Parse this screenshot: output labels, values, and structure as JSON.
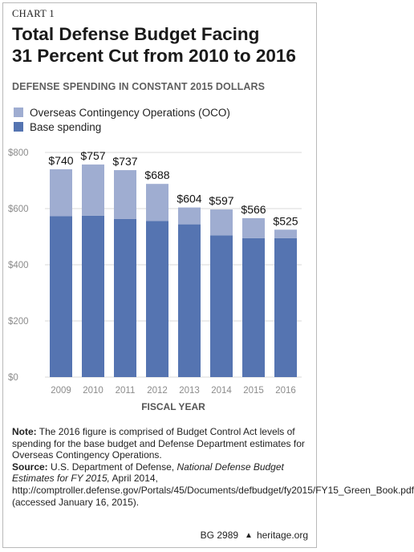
{
  "header": {
    "chart_label": "CHART 1",
    "title_line1": "Total Defense Budget Facing",
    "title_line2": "31 Percent Cut from 2010 to 2016",
    "subtitle": "DEFENSE SPENDING IN CONSTANT 2015 DOLLARS"
  },
  "colors": {
    "oco": "#9fadd1",
    "base": "#5574b1",
    "grid": "#d8d8d8"
  },
  "chart_data": {
    "type": "bar",
    "stacked": true,
    "categories": [
      "2009",
      "2010",
      "2011",
      "2012",
      "2013",
      "2014",
      "2015",
      "2016"
    ],
    "series": [
      {
        "name": "Base spending",
        "values": [
          573,
          575,
          563,
          556,
          544,
          505,
          495,
          495
        ]
      },
      {
        "name": "Overseas Contingency Operations (OCO)",
        "values": [
          167,
          182,
          174,
          132,
          60,
          92,
          71,
          30
        ]
      }
    ],
    "totals_labels": [
      "$740",
      "$757",
      "$737",
      "$688",
      "$604",
      "$597",
      "$566",
      "$525"
    ],
    "ylim": [
      0,
      800
    ],
    "yticks": [
      0,
      200,
      400,
      600,
      800
    ],
    "ytick_labels": [
      "$0",
      "$200",
      "$400",
      "$600",
      "$800"
    ],
    "xlabel": "FISCAL YEAR",
    "legend_position": "top-left",
    "grid": true
  },
  "notes": {
    "note_label": "Note:",
    "note_text": "The 2016 figure is comprised of Budget Control Act levels of spending for the base budget and Defense Department estimates for Overseas Contingency Operations.",
    "source_label": "Source:",
    "source_text_a": "U.S. Department of Defense, ",
    "source_italic": "National Defense Budget Estimates for FY 2015,",
    "source_text_b": "April 2014, http://comptroller.defense.gov/Portals/45/Documents/defbudget/fy2015/FY15_Green_Book.pdf (accessed January 16, 2015)."
  },
  "footer": {
    "code": "BG 2989",
    "lamp_icon": "heritage-lamp-icon",
    "site": "heritage.org"
  }
}
